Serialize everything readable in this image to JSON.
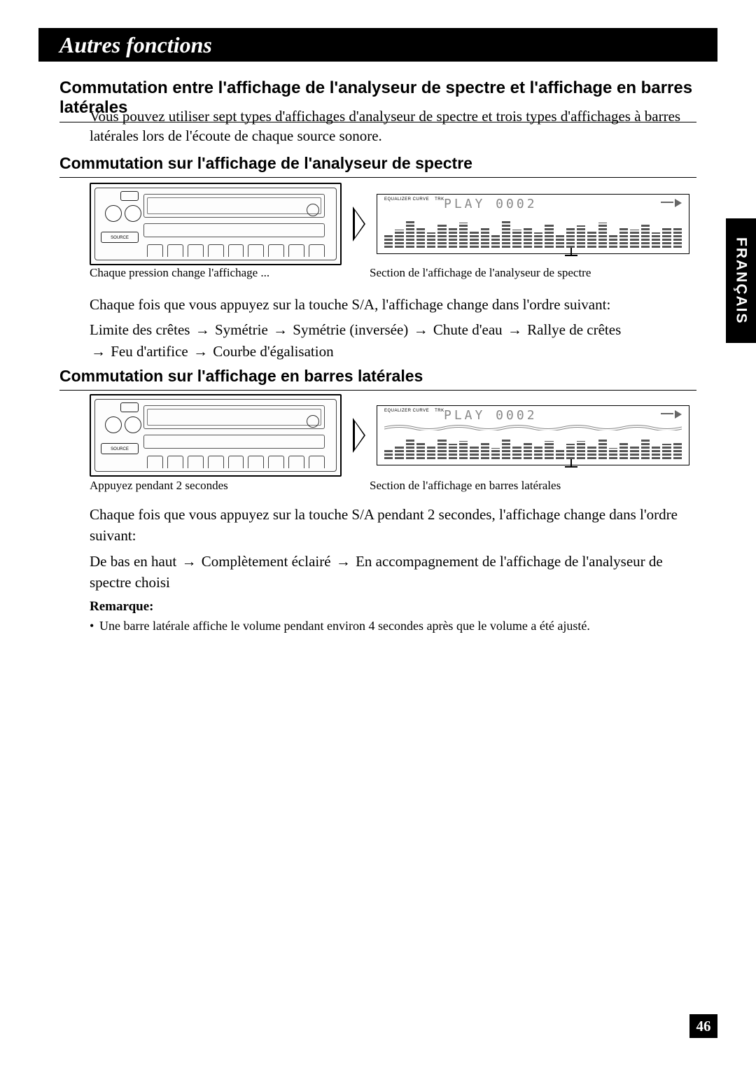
{
  "header": {
    "title": "Autres fonctions"
  },
  "mainTitle": "Commutation entre l'affichage de l'analyseur de spectre et l'affichage en barres latérales",
  "intro": "Vous pouvez utiliser sept types d'affichages d'analyseur de spectre et trois types d'affichages à barres latérales lors de l'écoute de chaque source sonore.",
  "section1": {
    "title": "Commutation sur l'affichage de l'analyseur de spectre",
    "captionLeft": "Chaque pression change l'affichage ...",
    "captionRight": "Section de l'affichage de l'analyseur de spectre",
    "p1": "Chaque fois que vous appuyez sur la touche S/A, l'affichage change dans l'ordre suivant:",
    "seq": {
      "a": "Limite des crêtes",
      "b": "Symétrie",
      "c": "Symétrie (inversée)",
      "d": "Chute d'eau",
      "e": "Rallye de crêtes",
      "f": "Feu d'artifice",
      "g": "Courbe d'égalisation"
    }
  },
  "section2": {
    "title": "Commutation sur l'affichage en barres latérales",
    "captionLeft": "Appuyez pendant 2 secondes",
    "captionRight": "Section de l'affichage en barres latérales",
    "p1": "Chaque fois que vous appuyez sur la touche S/A pendant 2 secondes, l'affichage change dans l'ordre suivant:",
    "seq": {
      "a": "De bas en haut",
      "b": "Complètement éclairé",
      "c": "En accompagnement de l'affichage de l'analyseur de spectre choisi"
    }
  },
  "remark": {
    "title": "Remarque:",
    "body": "Une barre latérale affiche le volume pendant environ 4 secondes après que le volume a été ajusté."
  },
  "sideTab": "FRANÇAIS",
  "pageNumber": "46",
  "arrow": "→",
  "lcd": {
    "label": "EQUALIZER CURVE",
    "trk": "TRK",
    "text": "PLAY   0002",
    "barHeights1": [
      18,
      26,
      40,
      30,
      22,
      34,
      28,
      36,
      24,
      30,
      20,
      38,
      26,
      30,
      22,
      34,
      18,
      28,
      32,
      24,
      36,
      20,
      30,
      26,
      34,
      22,
      28,
      30
    ],
    "barHeights2": [
      14,
      20,
      28,
      24,
      18,
      30,
      22,
      26,
      20,
      24,
      16,
      30,
      20,
      24,
      18,
      26,
      14,
      22,
      26,
      20,
      30,
      16,
      24,
      20,
      28,
      18,
      22,
      24
    ]
  },
  "stereo": {
    "source": "SOURCE"
  },
  "colors": {
    "bg": "#ffffff",
    "fg": "#000000",
    "lcdBar": "#555555",
    "lcdText": "#888888"
  }
}
